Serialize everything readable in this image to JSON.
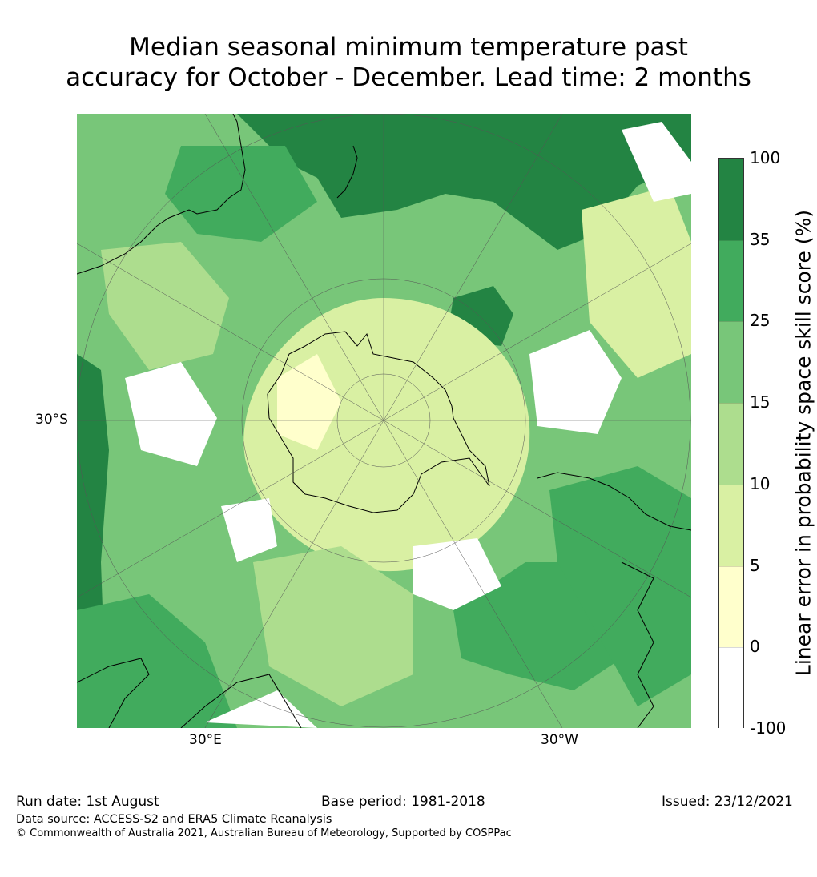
{
  "title_line1": "Median seasonal minimum temperature past",
  "title_line2": "accuracy for October - December. Lead time: 2 months",
  "map": {
    "latitude_label": "30°S",
    "longitude_labels": [
      "30°E",
      "30°W"
    ],
    "colors": {
      "white": "#ffffff",
      "c0_5": "#ffffcc",
      "c5_10": "#d9f0a3",
      "c10_15": "#addd8e",
      "c15_25": "#78c679",
      "c25_35": "#41ab5d",
      "c35_100": "#238443"
    }
  },
  "colorbar": {
    "title": "Linear error in probability space skill score (%)",
    "tick_labels": [
      "100",
      "35",
      "25",
      "15",
      "10",
      "5",
      "0",
      "-100"
    ],
    "colors": [
      "#238443",
      "#41ab5d",
      "#78c679",
      "#addd8e",
      "#d9f0a3",
      "#ffffcc",
      "#ffffff"
    ]
  },
  "footer": {
    "run_date": "Run date: 1st August",
    "base_period": "Base period: 1981-2018",
    "issued": "Issued: 23/12/2021",
    "data_source": "Data source: ACCESS-S2 and ERA5 Climate Reanalysis",
    "copyright": "© Commonwealth of Australia 2021, Australian Bureau of Meteorology, Supported by COSPPac"
  }
}
